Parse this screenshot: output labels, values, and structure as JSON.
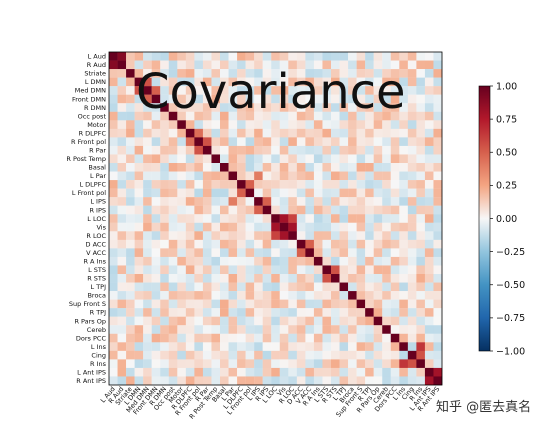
{
  "chart_data": {
    "type": "heatmap",
    "title": "Covariance",
    "labels": [
      "L Aud",
      "R Aud",
      "Striate",
      "L DMN",
      "Med DMN",
      "Front DMN",
      "R DMN",
      "Occ post",
      "Motor",
      "R DLPFC",
      "R Front pol",
      "R Par",
      "R Post Temp",
      "Basal",
      "L Par",
      "L DLPFC",
      "L Front pol",
      "L IPS",
      "R IPS",
      "L LOC",
      "Vis",
      "R LOC",
      "D ACC",
      "V ACC",
      "R A Ins",
      "L STS",
      "R STS",
      "L TPJ",
      "Broca",
      "Sup Front S",
      "R TPJ",
      "R Pars Op",
      "Cereb",
      "Dors PCC",
      "L Ins",
      "Cing",
      "R Ins",
      "L Ant IPS",
      "R Ant IPS"
    ],
    "vmin": -1.0,
    "vmax": 1.0,
    "colormap": "RdBu_r",
    "colorbar_ticks": [
      "1.00",
      "0.75",
      "0.50",
      "0.25",
      "0.00",
      "−0.25",
      "−0.50",
      "−0.75",
      "−1.00"
    ],
    "diagonal": 1.0,
    "strong_offdiagonal": [
      [
        0,
        1,
        0.9
      ],
      [
        19,
        20,
        0.8
      ],
      [
        20,
        21,
        0.8
      ],
      [
        19,
        21,
        0.6
      ],
      [
        3,
        4,
        0.55
      ],
      [
        4,
        5,
        0.5
      ],
      [
        10,
        11,
        0.55
      ],
      [
        15,
        16,
        0.5
      ],
      [
        17,
        18,
        0.5
      ],
      [
        37,
        38,
        0.8
      ],
      [
        34,
        36,
        0.65
      ],
      [
        35,
        36,
        0.55
      ],
      [
        22,
        23,
        0.5
      ],
      [
        25,
        26,
        0.55
      ],
      [
        9,
        10,
        0.45
      ],
      [
        14,
        17,
        0.4
      ]
    ]
  },
  "watermark": "知乎 @匿去真名"
}
